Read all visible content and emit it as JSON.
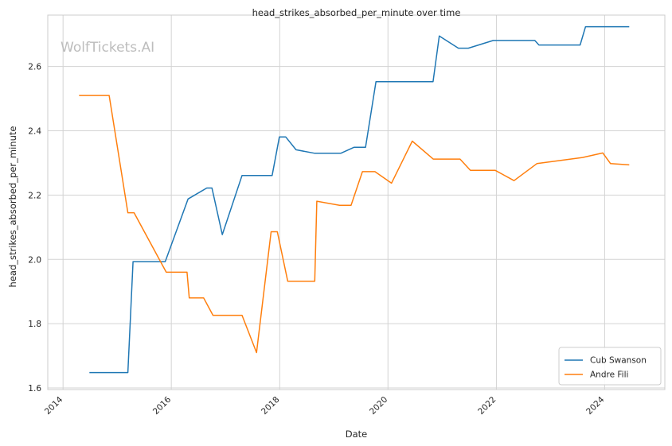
{
  "watermark": "WolfTickets.AI",
  "chart_data": {
    "type": "line",
    "title": "head_strikes_absorbed_per_minute over time",
    "xlabel": "Date",
    "ylabel": "head_strikes_absorbed_per_minute",
    "xlim": [
      "2013-09-20",
      "2025-02-10"
    ],
    "ylim": [
      1.595,
      2.76
    ],
    "xticks": [
      "2014",
      "2016",
      "2018",
      "2020",
      "2022",
      "2024"
    ],
    "yticks": [
      "1.6",
      "1.8",
      "2.0",
      "2.2",
      "2.4",
      "2.6"
    ],
    "grid": true,
    "legend_position": "bottom-right",
    "series": [
      {
        "name": "Cub Swanson",
        "color": "#1f77b4",
        "points": [
          [
            "2014-06-28",
            1.648
          ],
          [
            "2015-03-14",
            1.648
          ],
          [
            "2015-04-18",
            1.993
          ],
          [
            "2015-11-21",
            1.993
          ],
          [
            "2016-04-23",
            2.188
          ],
          [
            "2016-08-27",
            2.222
          ],
          [
            "2016-10-01",
            2.222
          ],
          [
            "2016-12-10",
            2.077
          ],
          [
            "2017-04-22",
            2.261
          ],
          [
            "2017-11-11",
            2.261
          ],
          [
            "2017-12-30",
            2.381
          ],
          [
            "2018-02-10",
            2.381
          ],
          [
            "2018-04-21",
            2.341
          ],
          [
            "2018-08-25",
            2.33
          ],
          [
            "2019-02-17",
            2.33
          ],
          [
            "2019-05-18",
            2.349
          ],
          [
            "2019-08-03",
            2.349
          ],
          [
            "2019-10-12",
            2.553
          ],
          [
            "2020-10-31",
            2.553
          ],
          [
            "2020-12-12",
            2.695
          ],
          [
            "2021-04-20",
            2.657
          ],
          [
            "2021-06-26",
            2.657
          ],
          [
            "2021-12-11",
            2.681
          ],
          [
            "2022-09-17",
            2.681
          ],
          [
            "2022-10-15",
            2.667
          ],
          [
            "2023-07-20",
            2.667
          ],
          [
            "2023-08-25",
            2.724
          ],
          [
            "2024-06-15",
            2.724
          ]
        ]
      },
      {
        "name": "Andre Fili",
        "color": "#ff7f0e",
        "points": [
          [
            "2014-04-19",
            2.51
          ],
          [
            "2014-11-08",
            2.51
          ],
          [
            "2015-03-14",
            2.145
          ],
          [
            "2015-04-25",
            2.145
          ],
          [
            "2015-11-28",
            1.96
          ],
          [
            "2016-04-16",
            1.96
          ],
          [
            "2016-05-01",
            1.88
          ],
          [
            "2016-08-06",
            1.88
          ],
          [
            "2016-10-08",
            1.826
          ],
          [
            "2017-04-22",
            1.826
          ],
          [
            "2017-07-29",
            1.71
          ],
          [
            "2017-11-04",
            2.086
          ],
          [
            "2017-12-16",
            2.086
          ],
          [
            "2018-02-24",
            1.932
          ],
          [
            "2018-08-25",
            1.932
          ],
          [
            "2018-09-08",
            2.181
          ],
          [
            "2019-02-09",
            2.168
          ],
          [
            "2019-04-27",
            2.168
          ],
          [
            "2019-07-13",
            2.273
          ],
          [
            "2019-10-05",
            2.273
          ],
          [
            "2020-01-25",
            2.237
          ],
          [
            "2020-06-13",
            2.368
          ],
          [
            "2020-11-01",
            2.312
          ],
          [
            "2021-05-01",
            2.312
          ],
          [
            "2021-07-10",
            2.277
          ],
          [
            "2021-12-25",
            2.277
          ],
          [
            "2022-04-30",
            2.245
          ],
          [
            "2022-10-01",
            2.298
          ],
          [
            "2023-08-05",
            2.317
          ],
          [
            "2023-12-20",
            2.331
          ],
          [
            "2024-02-10",
            2.298
          ],
          [
            "2024-06-15",
            2.294
          ]
        ]
      }
    ]
  }
}
